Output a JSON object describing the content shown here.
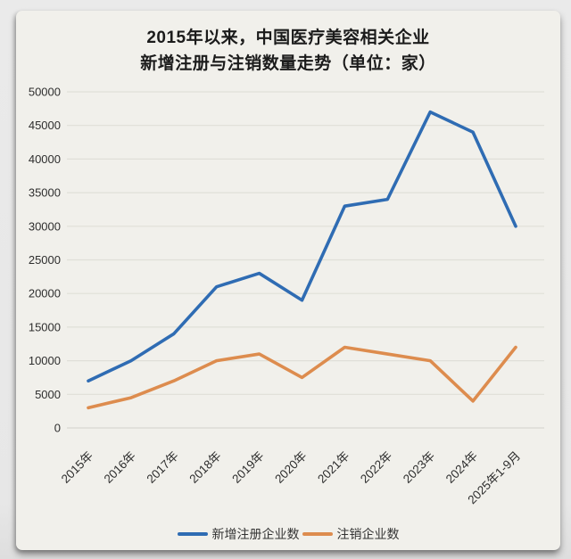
{
  "title": {
    "line1": "2015年以来，中国医疗美容相关企业",
    "line2": "新增注册与注销数量走势（单位：家）"
  },
  "chart_data": {
    "type": "line",
    "title": "2015年以来，中国医疗美容相关企业新增注册与注销数量走势（单位：家）",
    "categories": [
      "2015年",
      "2016年",
      "2017年",
      "2018年",
      "2019年",
      "2020年",
      "2021年",
      "2022年",
      "2023年",
      "2024年",
      "2025年1-9月"
    ],
    "series": [
      {
        "name": "新增注册企业数",
        "color": "#2f6cb3",
        "values": [
          7000,
          10000,
          14000,
          21000,
          23000,
          19000,
          33000,
          34000,
          47000,
          44000,
          30000
        ]
      },
      {
        "name": "注销企业数",
        "color": "#dd8c4e",
        "values": [
          3000,
          4500,
          7000,
          10000,
          11000,
          7500,
          12000,
          11000,
          10000,
          4000,
          12000
        ]
      }
    ],
    "xlabel": "",
    "ylabel": "",
    "ylim": [
      0,
      50000
    ],
    "ytick_step": 5000,
    "ytick_labels": [
      "0",
      "5000",
      "10000",
      "15000",
      "20000",
      "25000",
      "30000",
      "35000",
      "40000",
      "45000",
      "50000"
    ],
    "grid": true,
    "legend_position": "bottom"
  },
  "colors": {
    "page_background": "#e9e9e9",
    "card_background": "#f1f0eb",
    "gridline": "#e0dfd8",
    "axis_line": "#d9d8d1",
    "axis_label_text": "#2e2e2e",
    "title_text": "#1b1b1b",
    "legend_text": "#333333"
  }
}
